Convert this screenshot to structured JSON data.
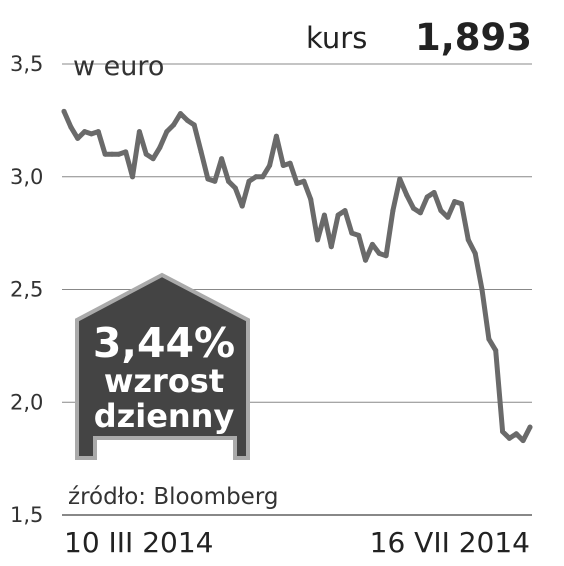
{
  "unit_label": "w euro",
  "kurs": {
    "label": "kurs",
    "value": "1,893"
  },
  "badge": {
    "percent": "3,44%",
    "line1": "wzrost",
    "line2": "dzienny"
  },
  "source": "źródło: Bloomberg",
  "dates": {
    "start": "10 III 2014",
    "end": "16 VII 2014"
  },
  "colors": {
    "line": "#6a6a6a",
    "grid": "#888888",
    "badge_fill": "#444444",
    "badge_stroke": "#aaaaaa"
  },
  "chart_data": {
    "type": "line",
    "ylim": [
      1.5,
      3.5
    ],
    "grid": "horizontal",
    "ytick_labels": [
      "3,5",
      "3,0",
      "2,5",
      "2,0",
      "1,5"
    ],
    "yticks": [
      3.5,
      3.0,
      2.5,
      2.0,
      1.5
    ],
    "x_start_label": "10 III 2014",
    "x_end_label": "16 VII 2014",
    "values": [
      3.29,
      3.22,
      3.17,
      3.2,
      3.19,
      3.2,
      3.1,
      3.1,
      3.1,
      3.11,
      3.0,
      3.2,
      3.1,
      3.08,
      3.13,
      3.2,
      3.23,
      3.28,
      3.25,
      3.23,
      3.11,
      2.99,
      2.98,
      3.08,
      2.98,
      2.95,
      2.87,
      2.98,
      3.0,
      3.0,
      3.05,
      3.18,
      3.05,
      3.06,
      2.97,
      2.98,
      2.9,
      2.72,
      2.83,
      2.69,
      2.83,
      2.85,
      2.75,
      2.74,
      2.63,
      2.7,
      2.66,
      2.65,
      2.85,
      2.99,
      2.92,
      2.86,
      2.84,
      2.91,
      2.93,
      2.85,
      2.82,
      2.89,
      2.88,
      2.72,
      2.66,
      2.5,
      2.28,
      2.23,
      1.87,
      1.84,
      1.86,
      1.83,
      1.89
    ]
  }
}
